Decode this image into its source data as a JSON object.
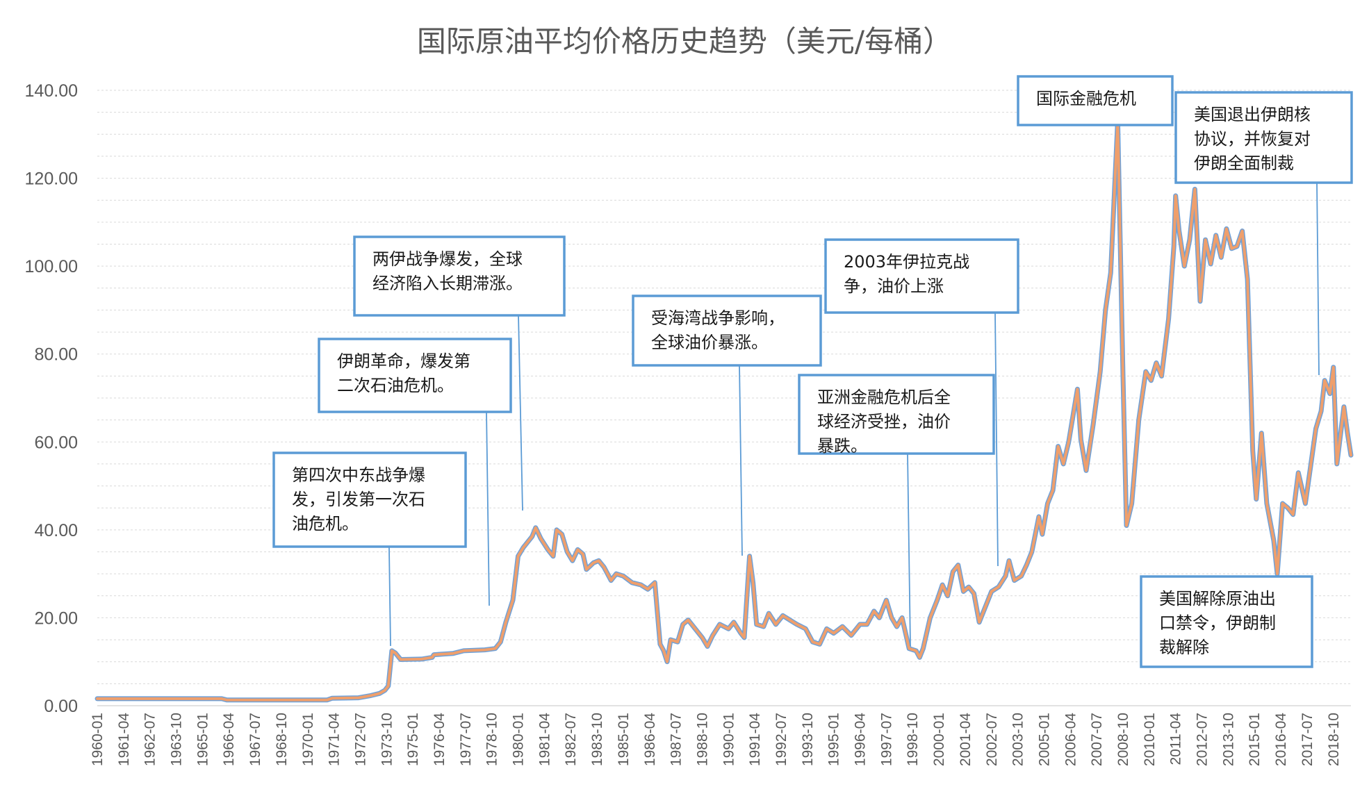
{
  "chart_data": {
    "type": "line",
    "title": "国际原油平均价格历史趋势（美元/每桶）",
    "xlabel": "",
    "ylabel": "",
    "ylim": [
      0,
      140
    ],
    "y_ticks": [
      "0.00",
      "20.00",
      "40.00",
      "60.00",
      "80.00",
      "100.00",
      "120.00",
      "140.00"
    ],
    "x_ticks": [
      "1960-01",
      "1961-04",
      "1962-07",
      "1963-10",
      "1965-01",
      "1966-04",
      "1967-07",
      "1968-10",
      "1970-01",
      "1971-04",
      "1972-07",
      "1973-10",
      "1975-01",
      "1976-04",
      "1977-07",
      "1978-10",
      "1980-01",
      "1981-04",
      "1982-07",
      "1983-10",
      "1985-01",
      "1986-04",
      "1987-07",
      "1988-10",
      "1990-01",
      "1991-04",
      "1992-07",
      "1993-10",
      "1995-01",
      "1996-04",
      "1997-07",
      "1998-10",
      "2000-01",
      "2001-04",
      "2002-07",
      "2003-10",
      "2005-01",
      "2006-04",
      "2007-07",
      "2008-10",
      "2010-01",
      "2011-04",
      "2012-07",
      "2013-10",
      "2015-01",
      "2016-04",
      "2017-07",
      "2018-10"
    ],
    "grid": true,
    "legend": "none",
    "colors": {
      "line": "#ef9f6c",
      "line_shadow": "#6fa1d8",
      "box": "#5b9bd5"
    },
    "series": [
      {
        "points": [
          [
            "1960-01",
            1.6
          ],
          [
            "1965-12",
            1.6
          ],
          [
            "1966-03",
            1.3
          ],
          [
            "1970-12",
            1.3
          ],
          [
            "1971-03",
            1.7
          ],
          [
            "1972-06",
            1.8
          ],
          [
            "1973-01",
            2.3
          ],
          [
            "1973-06",
            2.8
          ],
          [
            "1973-09",
            3.5
          ],
          [
            "1973-11",
            4.5
          ],
          [
            "1974-01",
            12.5
          ],
          [
            "1974-03",
            12.0
          ],
          [
            "1974-06",
            10.5
          ],
          [
            "1975-06",
            10.6
          ],
          [
            "1975-12",
            11.0
          ],
          [
            "1976-01",
            11.6
          ],
          [
            "1976-12",
            11.9
          ],
          [
            "1977-06",
            12.5
          ],
          [
            "1978-06",
            12.7
          ],
          [
            "1978-12",
            13.0
          ],
          [
            "1979-03",
            14.5
          ],
          [
            "1979-06",
            19.0
          ],
          [
            "1979-10",
            24.0
          ],
          [
            "1980-01",
            34.0
          ],
          [
            "1980-04",
            36.0
          ],
          [
            "1980-09",
            38.5
          ],
          [
            "1980-11",
            40.5
          ],
          [
            "1981-02",
            38.0
          ],
          [
            "1981-06",
            35.5
          ],
          [
            "1981-09",
            34.0
          ],
          [
            "1981-11",
            40.0
          ],
          [
            "1982-02",
            39.0
          ],
          [
            "1982-05",
            35.0
          ],
          [
            "1982-08",
            33.0
          ],
          [
            "1982-11",
            35.5
          ],
          [
            "1983-02",
            34.5
          ],
          [
            "1983-04",
            31.0
          ],
          [
            "1983-08",
            32.5
          ],
          [
            "1983-11",
            33.0
          ],
          [
            "1984-02",
            31.5
          ],
          [
            "1984-06",
            28.5
          ],
          [
            "1984-09",
            30.0
          ],
          [
            "1985-01",
            29.5
          ],
          [
            "1985-06",
            28.0
          ],
          [
            "1985-11",
            27.5
          ],
          [
            "1986-03",
            26.5
          ],
          [
            "1986-07",
            28.0
          ],
          [
            "1986-10",
            14.0
          ],
          [
            "1986-12",
            12.5
          ],
          [
            "1987-02",
            10.0
          ],
          [
            "1987-04",
            15.0
          ],
          [
            "1987-08",
            14.5
          ],
          [
            "1987-11",
            18.5
          ],
          [
            "1988-02",
            19.5
          ],
          [
            "1988-07",
            17.0
          ],
          [
            "1988-10",
            15.5
          ],
          [
            "1989-01",
            13.5
          ],
          [
            "1989-04",
            16.0
          ],
          [
            "1989-08",
            18.5
          ],
          [
            "1990-01",
            17.5
          ],
          [
            "1990-04",
            19.0
          ],
          [
            "1990-08",
            16.5
          ],
          [
            "1990-10",
            15.5
          ],
          [
            "1991-01",
            34.0
          ],
          [
            "1991-03",
            28.0
          ],
          [
            "1991-05",
            18.5
          ],
          [
            "1991-09",
            18.0
          ],
          [
            "1991-12",
            21.0
          ],
          [
            "1992-04",
            18.5
          ],
          [
            "1992-08",
            20.5
          ],
          [
            "1992-12",
            19.5
          ],
          [
            "1993-04",
            18.5
          ],
          [
            "1993-09",
            17.5
          ],
          [
            "1994-01",
            14.5
          ],
          [
            "1994-05",
            14.0
          ],
          [
            "1994-09",
            17.5
          ],
          [
            "1995-01",
            16.5
          ],
          [
            "1995-06",
            18.0
          ],
          [
            "1995-11",
            16.0
          ],
          [
            "1996-04",
            18.5
          ],
          [
            "1996-08",
            18.5
          ],
          [
            "1996-12",
            21.5
          ],
          [
            "1997-03",
            20.0
          ],
          [
            "1997-07",
            24.0
          ],
          [
            "1997-10",
            20.0
          ],
          [
            "1998-01",
            18.0
          ],
          [
            "1998-04",
            20.0
          ],
          [
            "1998-08",
            13.0
          ],
          [
            "1998-12",
            12.5
          ],
          [
            "1999-02",
            11.0
          ],
          [
            "1999-04",
            13.0
          ],
          [
            "1999-08",
            20.0
          ],
          [
            "1999-12",
            24.0
          ],
          [
            "2000-03",
            27.5
          ],
          [
            "2000-06",
            25.0
          ],
          [
            "2000-09",
            30.5
          ],
          [
            "2000-12",
            32.0
          ],
          [
            "2001-03",
            26.0
          ],
          [
            "2001-06",
            27.0
          ],
          [
            "2001-09",
            25.5
          ],
          [
            "2001-12",
            19.0
          ],
          [
            "2002-03",
            22.0
          ],
          [
            "2002-07",
            26.0
          ],
          [
            "2002-11",
            27.0
          ],
          [
            "2003-03",
            29.5
          ],
          [
            "2003-05",
            33.0
          ],
          [
            "2003-08",
            28.5
          ],
          [
            "2003-12",
            29.5
          ],
          [
            "2004-03",
            32.0
          ],
          [
            "2004-06",
            35.0
          ],
          [
            "2004-10",
            43.0
          ],
          [
            "2004-12",
            39.0
          ],
          [
            "2005-03",
            46.0
          ],
          [
            "2005-06",
            49.0
          ],
          [
            "2005-09",
            59.0
          ],
          [
            "2005-12",
            55.0
          ],
          [
            "2006-03",
            60.0
          ],
          [
            "2006-08",
            72.0
          ],
          [
            "2006-10",
            60.5
          ],
          [
            "2007-01",
            53.5
          ],
          [
            "2007-05",
            64.0
          ],
          [
            "2007-09",
            76.0
          ],
          [
            "2007-12",
            90.0
          ],
          [
            "2008-03",
            98.5
          ],
          [
            "2008-07",
            133.0
          ],
          [
            "2008-10",
            75.0
          ],
          [
            "2008-12",
            41.0
          ],
          [
            "2009-03",
            46.0
          ],
          [
            "2009-07",
            65.0
          ],
          [
            "2009-11",
            76.0
          ],
          [
            "2010-02",
            74.0
          ],
          [
            "2010-05",
            78.0
          ],
          [
            "2010-08",
            75.0
          ],
          [
            "2010-12",
            88.0
          ],
          [
            "2011-03",
            104.5
          ],
          [
            "2011-04",
            116.0
          ],
          [
            "2011-06",
            108.0
          ],
          [
            "2011-09",
            100.0
          ],
          [
            "2011-12",
            106.0
          ],
          [
            "2012-03",
            117.5
          ],
          [
            "2012-06",
            92.0
          ],
          [
            "2012-09",
            106.0
          ],
          [
            "2012-12",
            100.5
          ],
          [
            "2013-03",
            107.0
          ],
          [
            "2013-06",
            102.0
          ],
          [
            "2013-09",
            108.5
          ],
          [
            "2013-12",
            104.0
          ],
          [
            "2014-03",
            104.5
          ],
          [
            "2014-06",
            108.0
          ],
          [
            "2014-09",
            97.0
          ],
          [
            "2014-12",
            58.0
          ],
          [
            "2015-02",
            47.0
          ],
          [
            "2015-05",
            62.0
          ],
          [
            "2015-08",
            46.0
          ],
          [
            "2015-12",
            37.5
          ],
          [
            "2016-02",
            30.0
          ],
          [
            "2016-05",
            46.0
          ],
          [
            "2016-08",
            45.0
          ],
          [
            "2016-11",
            43.5
          ],
          [
            "2017-02",
            53.0
          ],
          [
            "2017-06",
            46.0
          ],
          [
            "2017-09",
            54.5
          ],
          [
            "2017-12",
            63.0
          ],
          [
            "2018-03",
            67.0
          ],
          [
            "2018-05",
            74.0
          ],
          [
            "2018-08",
            71.0
          ],
          [
            "2018-10",
            77.0
          ],
          [
            "2018-12",
            55.0
          ],
          [
            "2019-04",
            68.0
          ],
          [
            "2019-06",
            62.0
          ],
          [
            "2019-08",
            57.0
          ]
        ]
      }
    ]
  },
  "annotations": [
    {
      "id": "annotation-oil-crisis-1",
      "lines": [
        "第四次中东战争爆",
        "发，引发第一次石",
        "油危机。"
      ],
      "target": [
        "1973-11",
        12.5
      ]
    },
    {
      "id": "annotation-oil-crisis-2",
      "lines": [
        "伊朗革命，爆发第",
        "二次石油危机。"
      ],
      "target": [
        "1979-01",
        22.0
      ]
    },
    {
      "id": "annotation-iran-iraq-war",
      "lines": [
        "两伊战争爆发，全球",
        "经济陷入长期滞涨。"
      ],
      "target": [
        "1980-04",
        43.0
      ]
    },
    {
      "id": "annotation-gulf-war",
      "lines": [
        "受海湾战争影响，",
        "全球油价暴涨。"
      ],
      "target": [
        "1990-12",
        33.0
      ]
    },
    {
      "id": "annotation-asian-crisis",
      "lines": [
        "亚洲金融危机后全",
        "球经济受挫，油价",
        "暴跌。"
      ],
      "target": [
        "1998-12",
        12.0
      ]
    },
    {
      "id": "annotation-iraq-war",
      "lines": [
        "2003年伊拉克战",
        "争，油价上涨"
      ],
      "target": [
        "2003-01",
        31.0
      ]
    },
    {
      "id": "annotation-financial-crisis",
      "lines": [
        "国际金融危机"
      ],
      "target": [
        "2008-07",
        133.0
      ]
    },
    {
      "id": "annotation-us-withdrawal",
      "lines": [
        "美国退出伊朗核",
        "协议，并恢复对",
        "伊朗全面制裁"
      ],
      "target": [
        "2018-05",
        74.0
      ]
    },
    {
      "id": "annotation-export-ban-lifted",
      "lines": [
        "美国解除原油出",
        "口禁令，伊朗制",
        "裁解除"
      ],
      "target": [
        "2016-02",
        30.0
      ]
    }
  ]
}
